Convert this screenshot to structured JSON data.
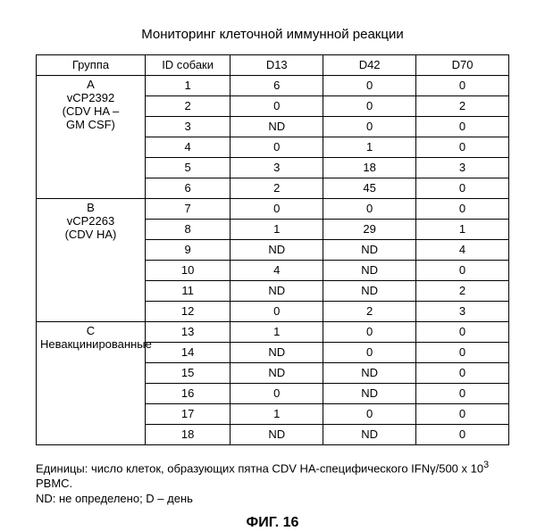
{
  "title": "Мониторинг клеточной иммунной реакции",
  "columns": {
    "group": "Группа",
    "dog_id": "ID собаки",
    "d13": "D13",
    "d42": "D42",
    "d70": "D70"
  },
  "groups": [
    {
      "label": "A\nvCP2392\n(CDV HA –\nGM CSF)",
      "rows": [
        {
          "id": "1",
          "d13": "6",
          "d42": "0",
          "d70": "0"
        },
        {
          "id": "2",
          "d13": "0",
          "d42": "0",
          "d70": "2"
        },
        {
          "id": "3",
          "d13": "ND",
          "d42": "0",
          "d70": "0"
        },
        {
          "id": "4",
          "d13": "0",
          "d42": "1",
          "d70": "0"
        },
        {
          "id": "5",
          "d13": "3",
          "d42": "18",
          "d70": "3"
        },
        {
          "id": "6",
          "d13": "2",
          "d42": "45",
          "d70": "0"
        }
      ]
    },
    {
      "label": "B\nvCP2263\n(CDV HA)",
      "rows": [
        {
          "id": "7",
          "d13": "0",
          "d42": "0",
          "d70": "0"
        },
        {
          "id": "8",
          "d13": "1",
          "d42": "29",
          "d70": "1"
        },
        {
          "id": "9",
          "d13": "ND",
          "d42": "ND",
          "d70": "4"
        },
        {
          "id": "10",
          "d13": "4",
          "d42": "ND",
          "d70": "0"
        },
        {
          "id": "11",
          "d13": "ND",
          "d42": "ND",
          "d70": "2"
        },
        {
          "id": "12",
          "d13": "0",
          "d42": "2",
          "d70": "3"
        }
      ]
    },
    {
      "label": "C\nНевакцинированные",
      "rows": [
        {
          "id": "13",
          "d13": "1",
          "d42": "0",
          "d70": "0"
        },
        {
          "id": "14",
          "d13": "ND",
          "d42": "0",
          "d70": "0"
        },
        {
          "id": "15",
          "d13": "ND",
          "d42": "ND",
          "d70": "0"
        },
        {
          "id": "16",
          "d13": "0",
          "d42": "ND",
          "d70": "0"
        },
        {
          "id": "17",
          "d13": "1",
          "d42": "0",
          "d70": "0"
        },
        {
          "id": "18",
          "d13": "ND",
          "d42": "ND",
          "d70": "0"
        }
      ]
    }
  ],
  "footnote_line1": "Единицы: число клеток, образующих пятна CDV HA-специфического IFNγ/500 x 10",
  "footnote_sup": "3",
  "footnote_line2": "PBMC.",
  "footnote_line3": "ND: не определено; D – день",
  "figure_label": "ФИГ. 16"
}
